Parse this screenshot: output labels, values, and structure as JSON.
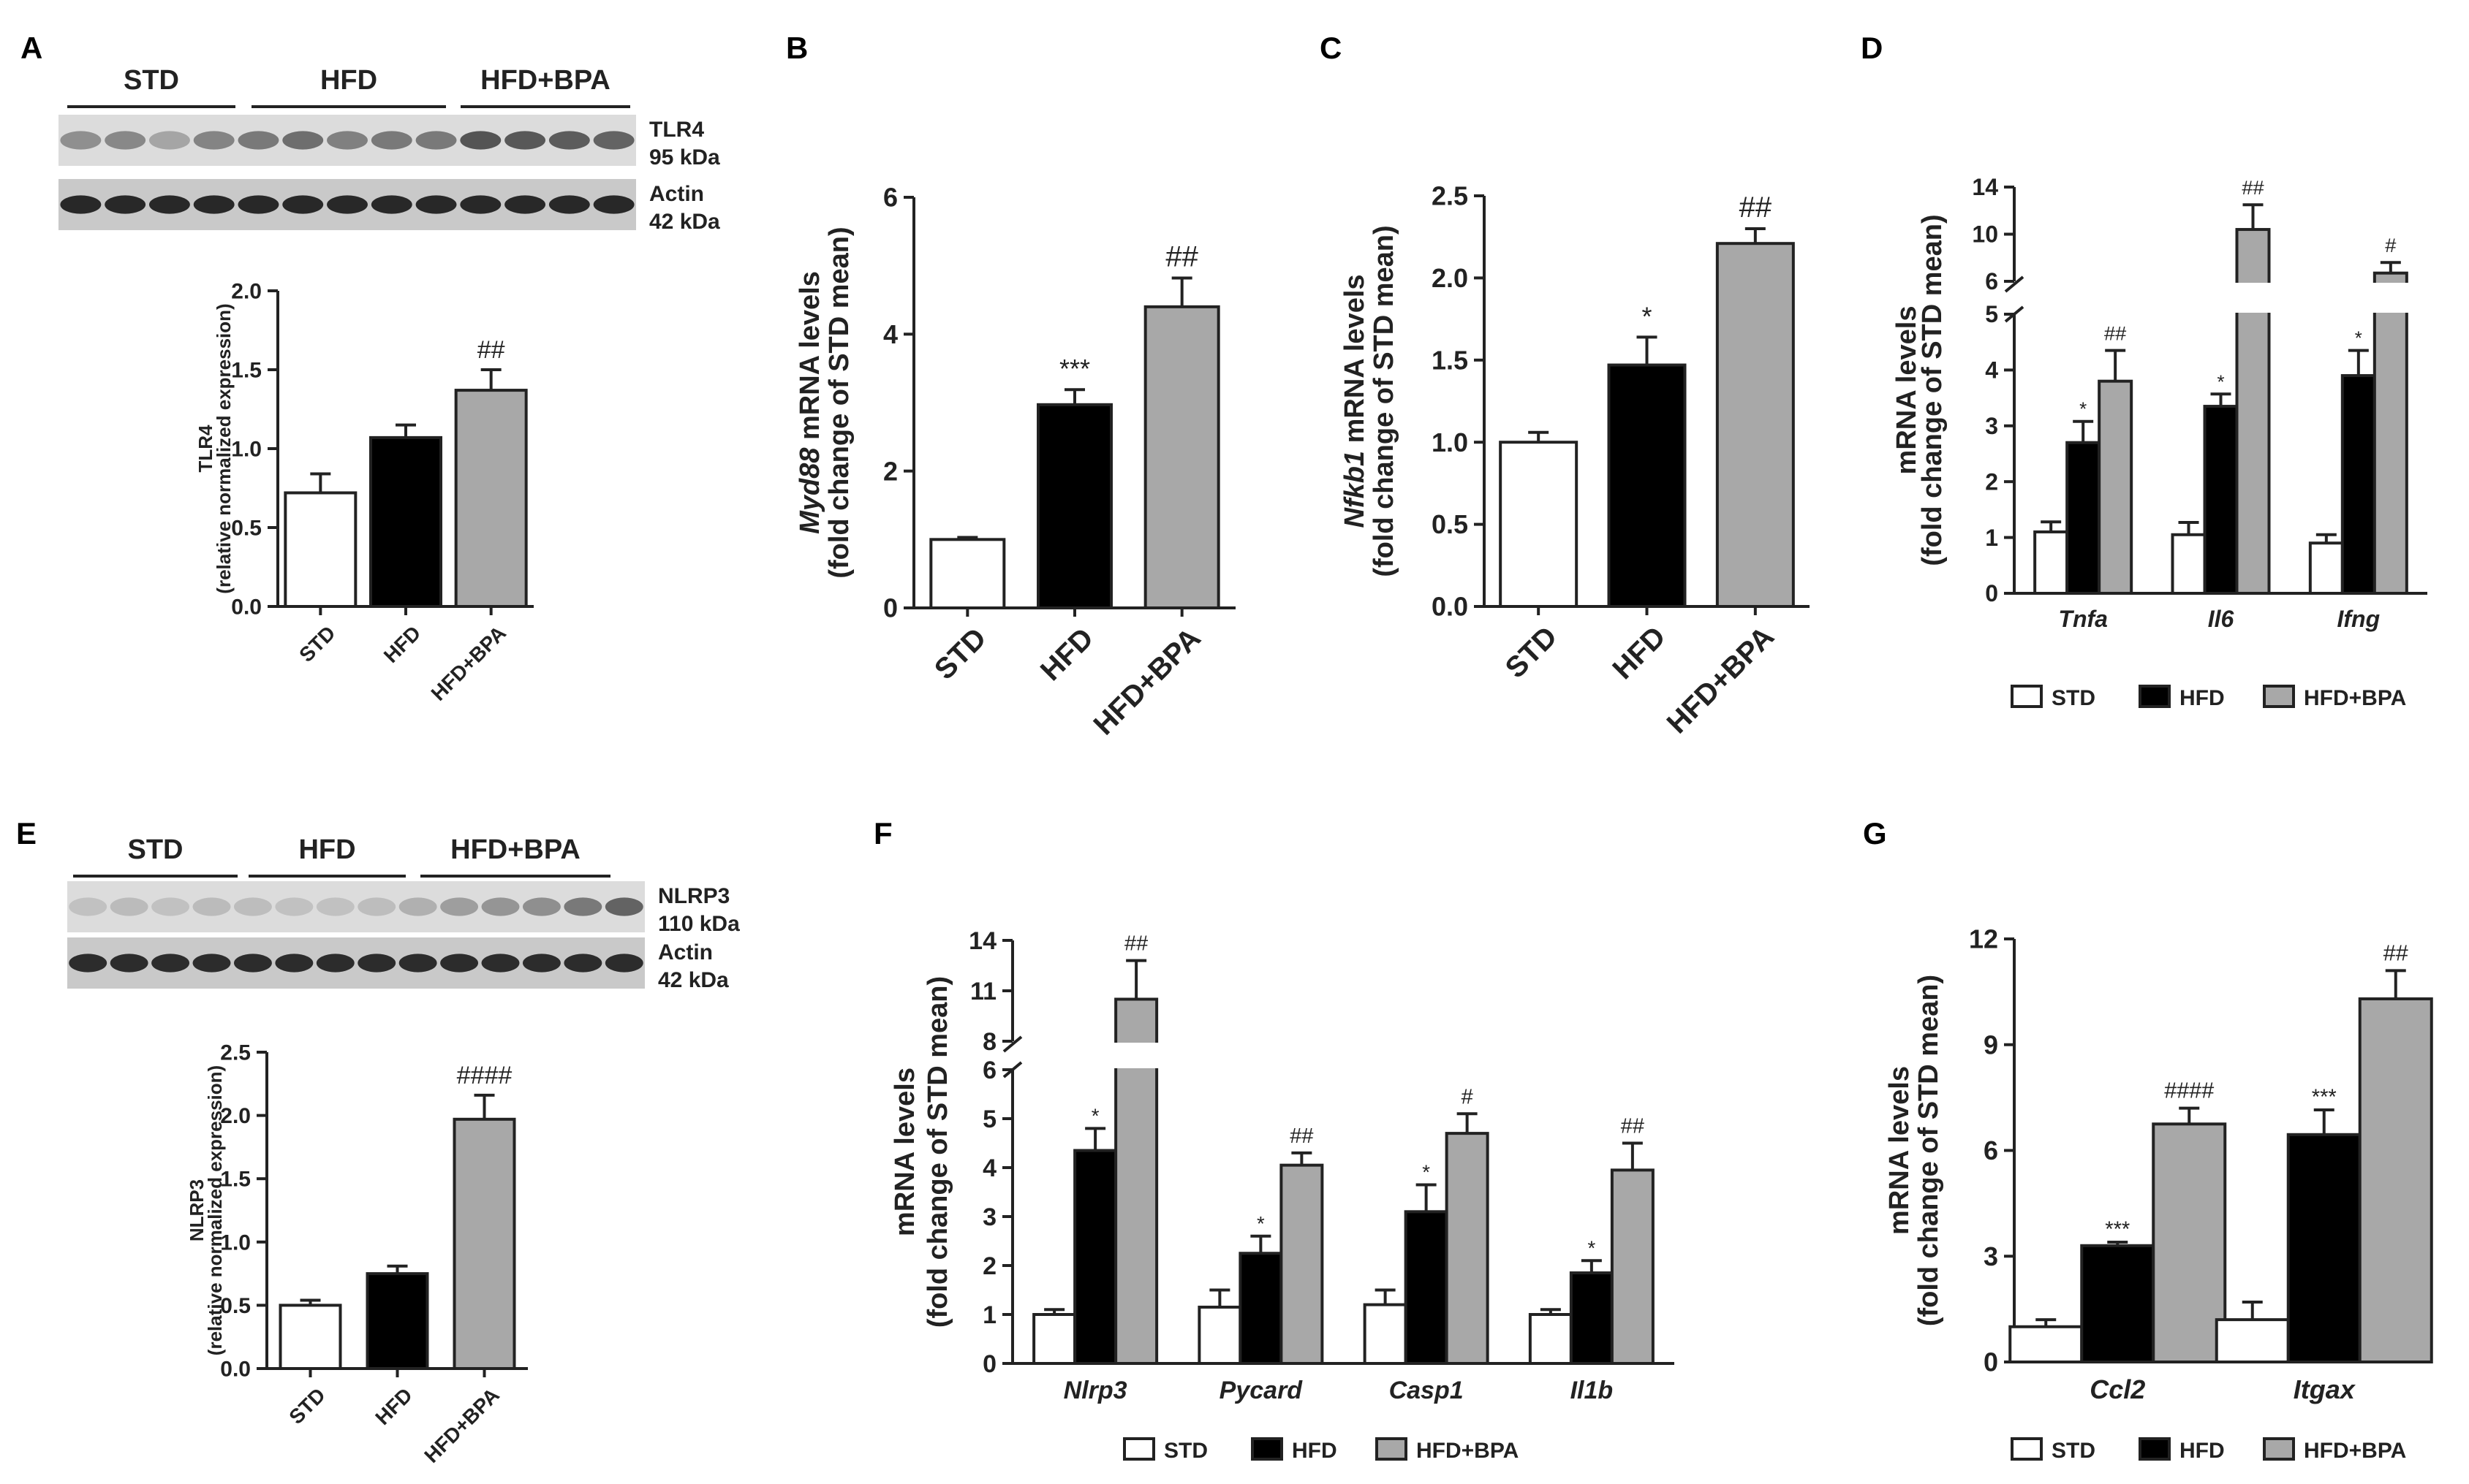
{
  "colors": {
    "std": "#ffffff",
    "hfd": "#000000",
    "hfd_bpa": "#a8a8a8",
    "axis": "#222222"
  },
  "legend_entries": [
    "STD",
    "HFD",
    "HFD+BPA"
  ],
  "blots": {
    "A": {
      "groups": [
        "STD",
        "HFD",
        "HFD+BPA"
      ],
      "bands": [
        {
          "name": "TLR4",
          "size": "95 kDa"
        },
        {
          "name": "Actin",
          "size": "42 kDa"
        }
      ]
    },
    "E": {
      "groups": [
        "STD",
        "HFD",
        "HFD+BPA"
      ],
      "bands": [
        {
          "name": "NLRP3",
          "size": "110 kDa"
        },
        {
          "name": "Actin",
          "size": "42 kDa"
        }
      ]
    }
  },
  "chart_data": [
    {
      "id": "A",
      "type": "bar",
      "title": "A",
      "categories": [
        "STD",
        "HFD",
        "HFD+BPA"
      ],
      "values": [
        0.72,
        1.07,
        1.37
      ],
      "errors": [
        0.12,
        0.08,
        0.13
      ],
      "significance": [
        "",
        "",
        "##"
      ],
      "ylabel": "TLR4",
      "ylabel2": "(relative normalized expression)",
      "ylim": [
        0,
        2.0
      ],
      "yticks": [
        "0.0",
        "0.5",
        "1.0",
        "1.5",
        "2.0"
      ]
    },
    {
      "id": "B",
      "type": "bar",
      "title": "B",
      "categories": [
        "STD",
        "HFD",
        "HFD+BPA"
      ],
      "values": [
        1.0,
        2.97,
        4.4
      ],
      "errors": [
        0.03,
        0.22,
        0.42
      ],
      "significance": [
        "",
        "***",
        "##"
      ],
      "ylabel_italic": "Myd88",
      "ylabel": " mRNA levels",
      "ylabel2": "(fold change of STD mean)",
      "ylim": [
        0,
        6
      ],
      "yticks": [
        "0",
        "2",
        "4",
        "6"
      ]
    },
    {
      "id": "C",
      "type": "bar",
      "title": "C",
      "categories": [
        "STD",
        "HFD",
        "HFD+BPA"
      ],
      "values": [
        1.0,
        1.47,
        2.21
      ],
      "errors": [
        0.06,
        0.17,
        0.09
      ],
      "significance": [
        "",
        "*",
        "##"
      ],
      "ylabel_italic": "Nfkb1",
      "ylabel": " mRNA levels",
      "ylabel2": "(fold change of STD mean)",
      "ylim": [
        0,
        2.5
      ],
      "yticks": [
        "0.0",
        "0.5",
        "1.0",
        "1.5",
        "2.0",
        "2.5"
      ]
    },
    {
      "id": "D",
      "type": "bar",
      "title": "D",
      "categories": [
        "Tnfa",
        "Il6",
        "Ifng"
      ],
      "series": [
        {
          "name": "STD",
          "values": [
            1.1,
            1.05,
            0.9
          ],
          "errors": [
            0.18,
            0.22,
            0.15
          ],
          "significance": [
            "",
            "",
            ""
          ]
        },
        {
          "name": "HFD",
          "values": [
            2.7,
            3.35,
            3.9
          ],
          "errors": [
            0.38,
            0.22,
            0.45
          ],
          "significance": [
            "*",
            "*",
            "*"
          ]
        },
        {
          "name": "HFD+BPA",
          "values": [
            3.8,
            10.4,
            6.7
          ],
          "errors": [
            0.55,
            2.1,
            0.9
          ],
          "significance": [
            "##",
            "##",
            "#"
          ]
        }
      ],
      "ylabel": "mRNA levels",
      "ylabel2": "(fold change of STD mean)",
      "lower_ylim": [
        0,
        5
      ],
      "upper_ylim": [
        6,
        14
      ],
      "yticks_lower": [
        "0",
        "1",
        "2",
        "3",
        "4",
        "5"
      ],
      "yticks_upper": [
        "6",
        "10",
        "14"
      ]
    },
    {
      "id": "E",
      "type": "bar",
      "title": "E",
      "categories": [
        "STD",
        "HFD",
        "HFD+BPA"
      ],
      "values": [
        0.5,
        0.75,
        1.97
      ],
      "errors": [
        0.04,
        0.06,
        0.19
      ],
      "significance": [
        "",
        "",
        "####"
      ],
      "ylabel": "NLRP3",
      "ylabel2": "(relative normalized expression)",
      "ylim": [
        0,
        2.5
      ],
      "yticks": [
        "0.0",
        "0.5",
        "1.0",
        "1.5",
        "2.0",
        "2.5"
      ]
    },
    {
      "id": "F",
      "type": "bar",
      "title": "F",
      "categories": [
        "Nlrp3",
        "Pycard",
        "Casp1",
        "Il1b"
      ],
      "series": [
        {
          "name": "STD",
          "values": [
            1.0,
            1.15,
            1.2,
            1.0
          ],
          "errors": [
            0.1,
            0.35,
            0.3,
            0.1
          ],
          "significance": [
            "",
            "",
            "",
            ""
          ]
        },
        {
          "name": "HFD",
          "values": [
            4.35,
            2.25,
            3.1,
            1.85
          ],
          "errors": [
            0.45,
            0.35,
            0.55,
            0.25
          ],
          "significance": [
            "*",
            "*",
            "*",
            "*"
          ]
        },
        {
          "name": "HFD+BPA",
          "values": [
            10.5,
            4.05,
            4.7,
            3.95
          ],
          "errors": [
            2.3,
            0.25,
            0.4,
            0.55
          ],
          "significance": [
            "##",
            "##",
            "#",
            "##"
          ]
        }
      ],
      "ylabel": "mRNA levels",
      "ylabel2": "(fold change of STD mean)",
      "lower_ylim": [
        0,
        6
      ],
      "upper_ylim": [
        8,
        14
      ],
      "yticks_lower": [
        "0",
        "1",
        "2",
        "3",
        "4",
        "5",
        "6"
      ],
      "yticks_upper": [
        "8",
        "11",
        "14"
      ]
    },
    {
      "id": "G",
      "type": "bar",
      "title": "G",
      "categories": [
        "Ccl2",
        "Itgax"
      ],
      "series": [
        {
          "name": "STD",
          "values": [
            1.0,
            1.2
          ],
          "errors": [
            0.2,
            0.5
          ],
          "significance": [
            "",
            ""
          ]
        },
        {
          "name": "HFD",
          "values": [
            3.3,
            6.45
          ],
          "errors": [
            0.1,
            0.7
          ],
          "significance": [
            "***",
            "***"
          ]
        },
        {
          "name": "HFD+BPA",
          "values": [
            6.75,
            10.3
          ],
          "errors": [
            0.45,
            0.8
          ],
          "significance": [
            "####",
            "##"
          ]
        }
      ],
      "ylabel": "mRNA levels",
      "ylabel2": "(fold change of STD mean)",
      "ylim": [
        0,
        12
      ],
      "yticks": [
        "0",
        "3",
        "6",
        "9",
        "12"
      ]
    }
  ]
}
